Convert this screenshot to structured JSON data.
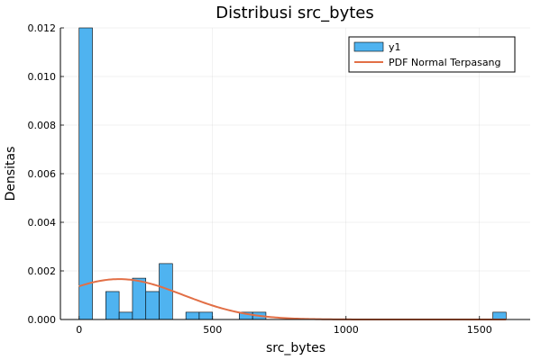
{
  "chart_data": {
    "type": "bar",
    "title": "Distribusi src_bytes",
    "xlabel": "src_bytes",
    "ylabel": "Densitas",
    "xlim": [
      -70,
      1690
    ],
    "ylim": [
      0,
      0.012
    ],
    "x_ticks": [
      0,
      500,
      1000,
      1500
    ],
    "y_ticks": [
      0.0,
      0.002,
      0.004,
      0.006,
      0.008,
      0.01,
      0.012
    ],
    "y_tick_labels": [
      "0.000",
      "0.002",
      "0.004",
      "0.006",
      "0.008",
      "0.010",
      "0.012"
    ],
    "grid": true,
    "legend_position": "top-right",
    "histogram": {
      "name": "y1",
      "color": "#4fb3f0",
      "bin_width": 50,
      "bins": [
        {
          "x0": 0,
          "x1": 50,
          "density": 0.012
        },
        {
          "x0": 100,
          "x1": 150,
          "density": 0.00115
        },
        {
          "x0": 150,
          "x1": 200,
          "density": 0.0003
        },
        {
          "x0": 200,
          "x1": 250,
          "density": 0.0017
        },
        {
          "x0": 250,
          "x1": 300,
          "density": 0.00115
        },
        {
          "x0": 300,
          "x1": 350,
          "density": 0.0023
        },
        {
          "x0": 400,
          "x1": 450,
          "density": 0.0003
        },
        {
          "x0": 450,
          "x1": 500,
          "density": 0.0003
        },
        {
          "x0": 600,
          "x1": 650,
          "density": 0.0003
        },
        {
          "x0": 650,
          "x1": 700,
          "density": 0.0003
        },
        {
          "x0": 1550,
          "x1": 1600,
          "density": 0.0003
        }
      ]
    },
    "pdf_curve": {
      "name": "PDF Normal Terpasang",
      "color": "#e26f46",
      "mean": 150,
      "std": 240,
      "x_range": [
        0,
        1600
      ]
    }
  }
}
